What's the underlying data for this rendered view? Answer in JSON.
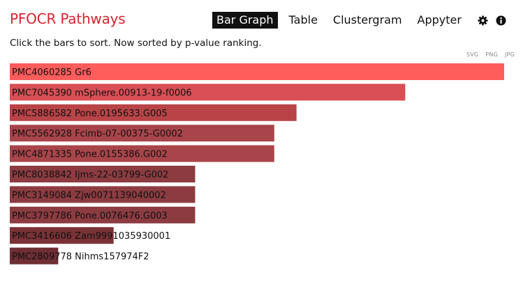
{
  "header": {
    "title": "PFOCR Pathways",
    "nav": [
      {
        "label": "Bar Graph",
        "active": true
      },
      {
        "label": "Table",
        "active": false
      },
      {
        "label": "Clustergram",
        "active": false
      },
      {
        "label": "Appyter",
        "active": false
      }
    ],
    "icons": [
      "gear-icon",
      "info-icon"
    ]
  },
  "instructions": "Click the bars to sort. Now sorted by p-value ranking.",
  "export_formats": [
    "SVG",
    "PNG",
    "JPG"
  ],
  "colors": {
    "title": "#d9232f",
    "bar_scale": [
      "#ff5c5c",
      "#d94f55",
      "#b84447",
      "#a3434a",
      "#8c3c41",
      "#7a3236"
    ]
  },
  "chart_data": {
    "type": "bar",
    "orientation": "horizontal",
    "sort": "p-value ranking",
    "categories": [
      "PMC4060285 Gr6",
      "PMC7045390 mSphere.00913-19-f0006",
      "PMC5886582 Pone.0195633.G005",
      "PMC5562928 Fcimb-07-00375-G0002",
      "PMC4871335 Pone.0155386.G002",
      "PMC8038842 Ijms-22-03799-G002",
      "PMC3149084 Zjw0071139040002",
      "PMC3797786 Pone.0076476.G003",
      "PMC3416606 Zam9991035930001",
      "PMC2809778 Nihms157974F2"
    ],
    "values": [
      1.0,
      0.8,
      0.58,
      0.535,
      0.535,
      0.375,
      0.375,
      0.375,
      0.21,
      0.098
    ],
    "bar_colors": [
      "#ff5c5c",
      "#d94f55",
      "#b84447",
      "#a8454a",
      "#a8454a",
      "#8c3c41",
      "#8c3c41",
      "#8c3c41",
      "#7a3236",
      "#6e2e33"
    ],
    "title": "",
    "xlabel": "",
    "ylabel": "",
    "grid": false
  }
}
